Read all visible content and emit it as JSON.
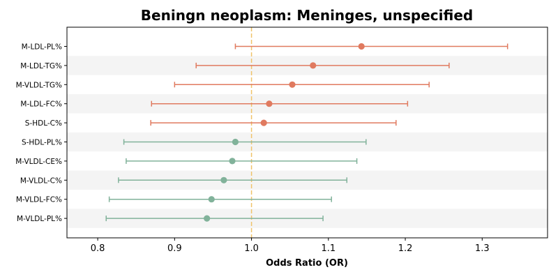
{
  "chart_data": {
    "type": "scatter",
    "title": "Beningn neoplasm: Meninges, unspecified",
    "xlabel": "Odds Ratio (OR)",
    "ylabel": "",
    "xlim": [
      0.76,
      1.385
    ],
    "xticks": [
      "0.8",
      "0.9",
      "1.0",
      "1.1",
      "1.2",
      "1.3"
    ],
    "reference_line": {
      "x": 1.0,
      "color": "#f0c36a",
      "style": "dashed"
    },
    "row_banding": true,
    "points": [
      {
        "label": "M-LDL-PL%",
        "or": 1.143,
        "ci_low": 0.979,
        "ci_high": 1.333,
        "color": "#e07a5f"
      },
      {
        "label": "M-LDL-TG%",
        "or": 1.08,
        "ci_low": 0.928,
        "ci_high": 1.257,
        "color": "#e07a5f"
      },
      {
        "label": "M-VLDL-TG%",
        "or": 1.053,
        "ci_low": 0.9,
        "ci_high": 1.231,
        "color": "#e07a5f"
      },
      {
        "label": "M-LDL-FC%",
        "or": 1.023,
        "ci_low": 0.87,
        "ci_high": 1.203,
        "color": "#e07a5f"
      },
      {
        "label": "S-HDL-C%",
        "or": 1.016,
        "ci_low": 0.869,
        "ci_high": 1.188,
        "color": "#e07a5f"
      },
      {
        "label": "S-HDL-PL%",
        "or": 0.979,
        "ci_low": 0.834,
        "ci_high": 1.149,
        "color": "#81b29a"
      },
      {
        "label": "M-VLDL-CE%",
        "or": 0.975,
        "ci_low": 0.837,
        "ci_high": 1.137,
        "color": "#81b29a"
      },
      {
        "label": "M-VLDL-C%",
        "or": 0.964,
        "ci_low": 0.827,
        "ci_high": 1.124,
        "color": "#81b29a"
      },
      {
        "label": "M-VLDL-FC%",
        "or": 0.948,
        "ci_low": 0.815,
        "ci_high": 1.104,
        "color": "#81b29a"
      },
      {
        "label": "M-VLDL-PL%",
        "or": 0.942,
        "ci_low": 0.811,
        "ci_high": 1.093,
        "color": "#81b29a"
      }
    ]
  }
}
